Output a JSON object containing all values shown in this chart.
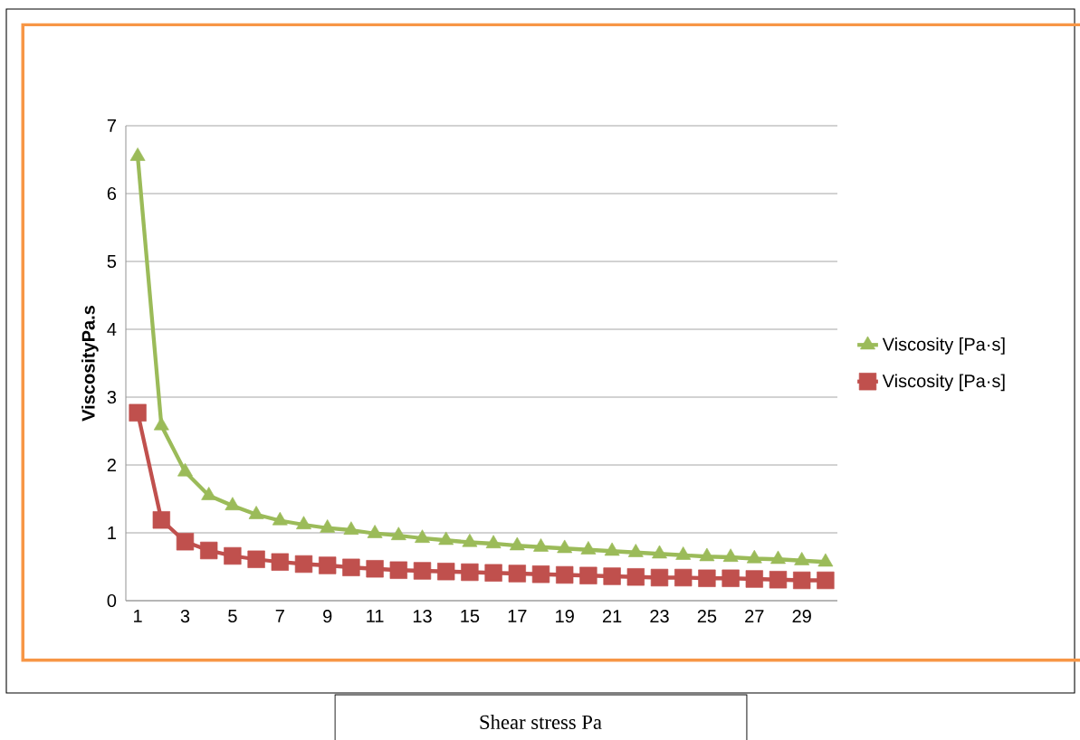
{
  "chart_data": {
    "type": "line",
    "xlabel": "Shear stress Pa",
    "ylabel": "ViscosityPa.s",
    "categories": [
      "1",
      null,
      "3",
      null,
      "5",
      null,
      "7",
      null,
      "9",
      null,
      "11",
      null,
      "13",
      null,
      "15",
      null,
      "17",
      null,
      "19",
      null,
      "21",
      null,
      "23",
      null,
      "25",
      null,
      "27",
      null,
      "29",
      null
    ],
    "series": [
      {
        "name": "Viscosity [Pa·s]",
        "color": "#9bbb59",
        "marker": "triangle",
        "values": [
          6.55,
          2.58,
          1.9,
          1.55,
          1.4,
          1.27,
          1.18,
          1.12,
          1.07,
          1.04,
          0.99,
          0.96,
          0.92,
          0.89,
          0.86,
          0.84,
          0.81,
          0.79,
          0.77,
          0.75,
          0.73,
          0.71,
          0.69,
          0.67,
          0.65,
          0.64,
          0.62,
          0.61,
          0.59,
          0.57
        ]
      },
      {
        "name": "Viscosity [Pa·s]",
        "color": "#c0504d",
        "marker": "square",
        "values": [
          2.77,
          1.19,
          0.87,
          0.74,
          0.66,
          0.61,
          0.57,
          0.54,
          0.52,
          0.49,
          0.47,
          0.45,
          0.44,
          0.43,
          0.42,
          0.41,
          0.4,
          0.39,
          0.38,
          0.37,
          0.36,
          0.35,
          0.34,
          0.34,
          0.33,
          0.33,
          0.32,
          0.31,
          0.3,
          0.3
        ]
      }
    ],
    "ylim": [
      0,
      7
    ],
    "yticks": [
      0,
      1,
      2,
      3,
      4,
      5,
      6,
      7
    ],
    "grid": "y",
    "legend": "right"
  }
}
